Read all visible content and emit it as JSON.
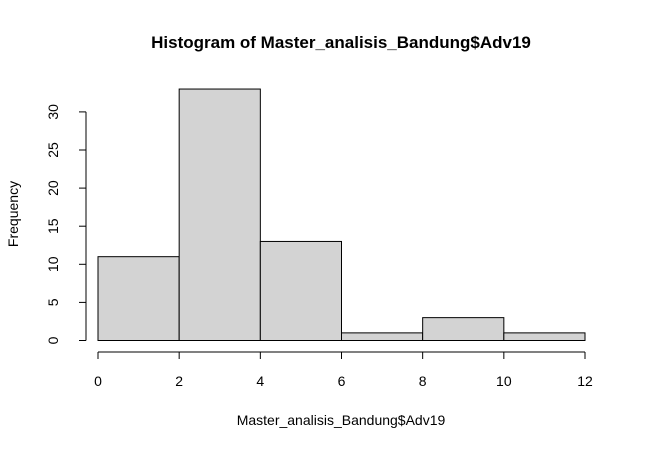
{
  "chart_data": {
    "type": "bar",
    "title": "Histogram of Master_analisis_Bandung$Adv19",
    "xlabel": "Master_analisis_Bandung$Adv19",
    "ylabel": "Frequency",
    "bins": [
      [
        0,
        2
      ],
      [
        2,
        4
      ],
      [
        4,
        6
      ],
      [
        6,
        8
      ],
      [
        8,
        10
      ],
      [
        10,
        12
      ]
    ],
    "values": [
      11,
      33,
      13,
      1,
      3,
      1
    ],
    "xlim": [
      0,
      12
    ],
    "ylim": [
      0,
      30
    ],
    "x_ticks": [
      0,
      2,
      4,
      6,
      8,
      10,
      12
    ],
    "y_ticks": [
      0,
      5,
      10,
      15,
      20,
      25,
      30
    ],
    "bar_color": "#d3d3d3",
    "grid": false
  }
}
